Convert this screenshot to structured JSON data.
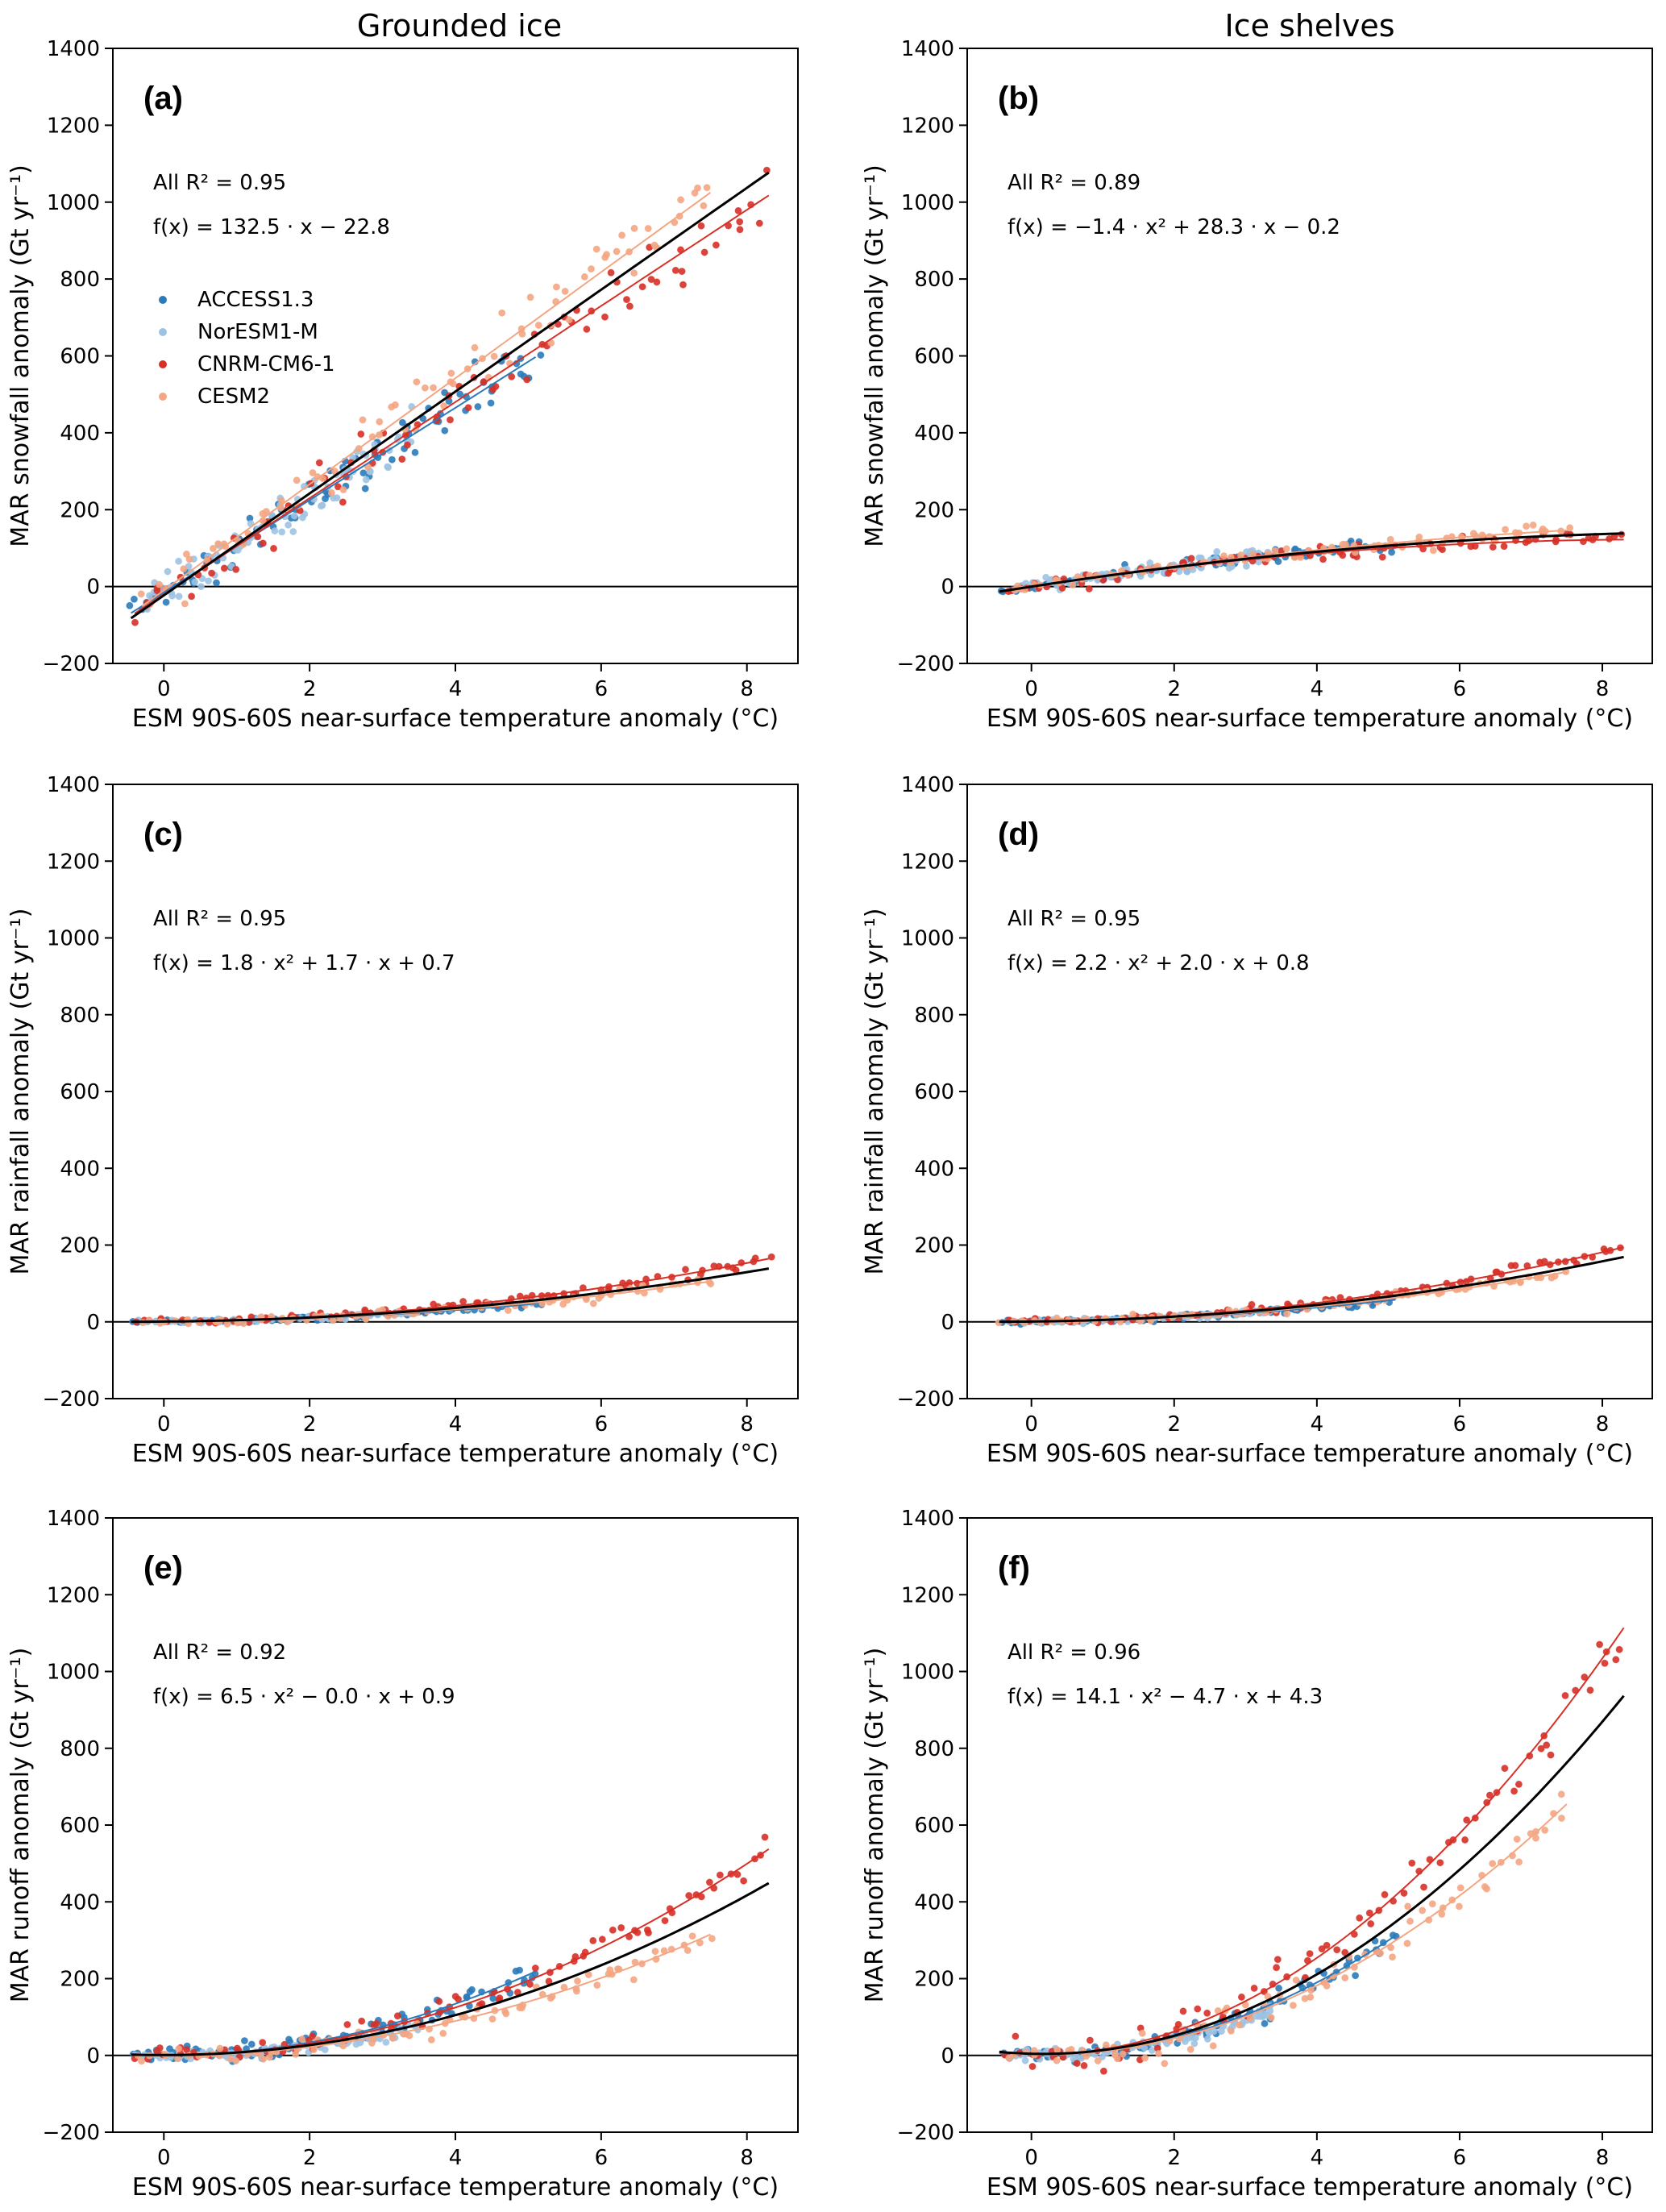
{
  "column_titles": [
    "Grounded ice",
    "Ice shelves"
  ],
  "colors": {
    "ACCESS1.3": "#2b7bba",
    "NorESM1-M": "#9ec3e2",
    "CNRM-CM6-1": "#d73027",
    "CESM2": "#f4a582",
    "all_fit": "#000000"
  },
  "legend": [
    "ACCESS1.3",
    "NorESM1-M",
    "CNRM-CM6-1",
    "CESM2"
  ],
  "chart_data": [
    {
      "id": "a",
      "type": "scatter",
      "label": "(a)",
      "xlabel": "ESM 90S-60S near-surface temperature anomaly (°C)",
      "ylabel": "MAR snowfall anomaly (Gt yr⁻¹)",
      "xlim": [
        -0.7,
        8.7
      ],
      "ylim": [
        -200,
        1400
      ],
      "xticks": [
        0,
        2,
        4,
        6,
        8
      ],
      "yticks": [
        -200,
        0,
        200,
        400,
        600,
        800,
        1000,
        1200,
        1400
      ],
      "r2_text": "All R² = 0.95",
      "fit_text": "f(x) = 132.5 · x − 22.8",
      "all_fit": {
        "a": 0,
        "b": 132.5,
        "c": -22.8,
        "x_range": [
          -0.45,
          8.3
        ]
      },
      "series": [
        {
          "name": "ACCESS1.3",
          "x_range": [
            -0.45,
            5.1
          ],
          "fit": {
            "a": 0,
            "b": 120,
            "c": -15
          },
          "spread": 35
        },
        {
          "name": "NorESM1-M",
          "x_range": [
            -0.3,
            3.4
          ],
          "fit": {
            "a": 0,
            "b": 125,
            "c": -20
          },
          "spread": 45
        },
        {
          "name": "CNRM-CM6-1",
          "x_range": [
            -0.4,
            8.3
          ],
          "fit": {
            "a": 0,
            "b": 125,
            "c": -20
          },
          "spread": 40
        },
        {
          "name": "CESM2",
          "x_range": [
            -0.3,
            7.5
          ],
          "fit": {
            "a": 0,
            "b": 138,
            "c": -10
          },
          "spread": 35
        }
      ]
    },
    {
      "id": "b",
      "type": "scatter",
      "label": "(b)",
      "xlabel": "ESM 90S-60S near-surface temperature anomaly (°C)",
      "ylabel": "MAR snowfall anomaly (Gt yr⁻¹)",
      "xlim": [
        -0.9,
        8.7
      ],
      "ylim": [
        -200,
        1400
      ],
      "xticks": [
        0,
        2,
        4,
        6,
        8
      ],
      "yticks": [
        -200,
        0,
        200,
        400,
        600,
        800,
        1000,
        1200,
        1400
      ],
      "r2_text": "All R² = 0.89",
      "fit_text": "f(x) = −1.4 · x² + 28.3 · x − 0.2",
      "all_fit": {
        "a": -1.4,
        "b": 28.3,
        "c": -0.2,
        "x_range": [
          -0.45,
          8.3
        ]
      },
      "series": [
        {
          "name": "ACCESS1.3",
          "x_range": [
            -0.45,
            5.1
          ],
          "fit": {
            "a": -1.2,
            "b": 27,
            "c": 0
          },
          "spread": 10
        },
        {
          "name": "NorESM1-M",
          "x_range": [
            -0.3,
            3.4
          ],
          "fit": {
            "a": -1.0,
            "b": 28,
            "c": 0
          },
          "spread": 12
        },
        {
          "name": "CNRM-CM6-1",
          "x_range": [
            -0.4,
            8.3
          ],
          "fit": {
            "a": -1.6,
            "b": 28,
            "c": 0
          },
          "spread": 10
        },
        {
          "name": "CESM2",
          "x_range": [
            -0.3,
            7.5
          ],
          "fit": {
            "a": -1.2,
            "b": 28.5,
            "c": 0
          },
          "spread": 10
        }
      ]
    },
    {
      "id": "c",
      "type": "scatter",
      "label": "(c)",
      "xlabel": "ESM 90S-60S near-surface temperature anomaly (°C)",
      "ylabel": "MAR rainfall anomaly (Gt yr⁻¹)",
      "xlim": [
        -0.7,
        8.7
      ],
      "ylim": [
        -200,
        1400
      ],
      "xticks": [
        0,
        2,
        4,
        6,
        8
      ],
      "yticks": [
        -200,
        0,
        200,
        400,
        600,
        800,
        1000,
        1200,
        1400
      ],
      "r2_text": "All R² = 0.95",
      "fit_text": "f(x) = 1.8 · x² + 1.7 · x + 0.7",
      "all_fit": {
        "a": 1.8,
        "b": 1.7,
        "c": 0.7,
        "x_range": [
          -0.45,
          8.3
        ]
      },
      "series": [
        {
          "name": "ACCESS1.3",
          "x_range": [
            -0.45,
            5.1
          ],
          "fit": {
            "a": 1.5,
            "b": 1.5,
            "c": 0.5
          },
          "spread": 4
        },
        {
          "name": "NorESM1-M",
          "x_range": [
            -0.3,
            3.4
          ],
          "fit": {
            "a": 1.6,
            "b": 1.5,
            "c": 0.5
          },
          "spread": 4
        },
        {
          "name": "CNRM-CM6-1",
          "x_range": [
            -0.4,
            8.3
          ],
          "fit": {
            "a": 2.2,
            "b": 1.5,
            "c": 0.5
          },
          "spread": 6
        },
        {
          "name": "CESM2",
          "x_range": [
            -0.3,
            7.5
          ],
          "fit": {
            "a": 1.7,
            "b": 1.2,
            "c": 0.5
          },
          "spread": 6
        }
      ]
    },
    {
      "id": "d",
      "type": "scatter",
      "label": "(d)",
      "xlabel": "ESM 90S-60S near-surface temperature anomaly (°C)",
      "ylabel": "MAR rainfall anomaly (Gt yr⁻¹)",
      "xlim": [
        -0.9,
        8.7
      ],
      "ylim": [
        -200,
        1400
      ],
      "xticks": [
        0,
        2,
        4,
        6,
        8
      ],
      "yticks": [
        -200,
        0,
        200,
        400,
        600,
        800,
        1000,
        1200,
        1400
      ],
      "r2_text": "All R² = 0.95",
      "fit_text": "f(x) = 2.2 · x² + 2.0 · x + 0.8",
      "all_fit": {
        "a": 2.2,
        "b": 2.0,
        "c": 0.8,
        "x_range": [
          -0.45,
          8.3
        ]
      },
      "series": [
        {
          "name": "ACCESS1.3",
          "x_range": [
            -0.45,
            5.1
          ],
          "fit": {
            "a": 1.8,
            "b": 2.0,
            "c": 0.5
          },
          "spread": 4
        },
        {
          "name": "NorESM1-M",
          "x_range": [
            -0.3,
            3.4
          ],
          "fit": {
            "a": 2.0,
            "b": 2.0,
            "c": 0.5
          },
          "spread": 4
        },
        {
          "name": "CNRM-CM6-1",
          "x_range": [
            -0.4,
            8.3
          ],
          "fit": {
            "a": 2.6,
            "b": 1.8,
            "c": 0.5
          },
          "spread": 6
        },
        {
          "name": "CESM2",
          "x_range": [
            -0.3,
            7.5
          ],
          "fit": {
            "a": 2.1,
            "b": 1.5,
            "c": 0.5
          },
          "spread": 6
        }
      ]
    },
    {
      "id": "e",
      "type": "scatter",
      "label": "(e)",
      "xlabel": "ESM 90S-60S near-surface temperature anomaly (°C)",
      "ylabel": "MAR runoff anomaly (Gt yr⁻¹)",
      "xlim": [
        -0.7,
        8.7
      ],
      "ylim": [
        -200,
        1400
      ],
      "xticks": [
        0,
        2,
        4,
        6,
        8
      ],
      "yticks": [
        -200,
        0,
        200,
        400,
        600,
        800,
        1000,
        1200,
        1400
      ],
      "r2_text": "All R² = 0.92",
      "fit_text": "f(x) = 6.5 · x² − 0.0 · x + 0.9",
      "all_fit": {
        "a": 6.5,
        "b": 0.0,
        "c": 0.9,
        "x_range": [
          -0.45,
          8.3
        ]
      },
      "series": [
        {
          "name": "ACCESS1.3",
          "x_range": [
            -0.45,
            5.1
          ],
          "fit": {
            "a": 8.4,
            "b": 0,
            "c": 0
          },
          "spread": 15
        },
        {
          "name": "NorESM1-M",
          "x_range": [
            -0.3,
            3.4
          ],
          "fit": {
            "a": 5.5,
            "b": 0,
            "c": 0
          },
          "spread": 10
        },
        {
          "name": "CNRM-CM6-1",
          "x_range": [
            -0.4,
            8.3
          ],
          "fit": {
            "a": 7.8,
            "b": 0,
            "c": 0
          },
          "spread": 18
        },
        {
          "name": "CESM2",
          "x_range": [
            -0.3,
            7.5
          ],
          "fit": {
            "a": 5.6,
            "b": 0,
            "c": 0
          },
          "spread": 15
        }
      ]
    },
    {
      "id": "f",
      "type": "scatter",
      "label": "(f)",
      "xlabel": "ESM 90S-60S near-surface temperature anomaly (°C)",
      "ylabel": "MAR runoff anomaly (Gt yr⁻¹)",
      "xlim": [
        -0.9,
        8.7
      ],
      "ylim": [
        -200,
        1400
      ],
      "xticks": [
        0,
        2,
        4,
        6,
        8
      ],
      "yticks": [
        -200,
        0,
        200,
        400,
        600,
        800,
        1000,
        1200,
        1400
      ],
      "r2_text": "All R² = 0.96",
      "fit_text": "f(x) = 14.1 · x² − 4.7 · x + 4.3",
      "all_fit": {
        "a": 14.1,
        "b": -4.7,
        "c": 4.3,
        "x_range": [
          -0.45,
          8.3
        ]
      },
      "series": [
        {
          "name": "ACCESS1.3",
          "x_range": [
            -0.45,
            5.1
          ],
          "fit": {
            "a": 12.5,
            "b": -3,
            "c": 2
          },
          "spread": 18
        },
        {
          "name": "NorESM1-M",
          "x_range": [
            -0.3,
            3.4
          ],
          "fit": {
            "a": 11,
            "b": -3,
            "c": 2
          },
          "spread": 12
        },
        {
          "name": "CNRM-CM6-1",
          "x_range": [
            -0.4,
            8.3
          ],
          "fit": {
            "a": 16.5,
            "b": -3,
            "c": 2
          },
          "spread": 30
        },
        {
          "name": "CESM2",
          "x_range": [
            -0.3,
            7.5
          ],
          "fit": {
            "a": 12,
            "b": -3,
            "c": 2
          },
          "spread": 25
        }
      ]
    }
  ]
}
